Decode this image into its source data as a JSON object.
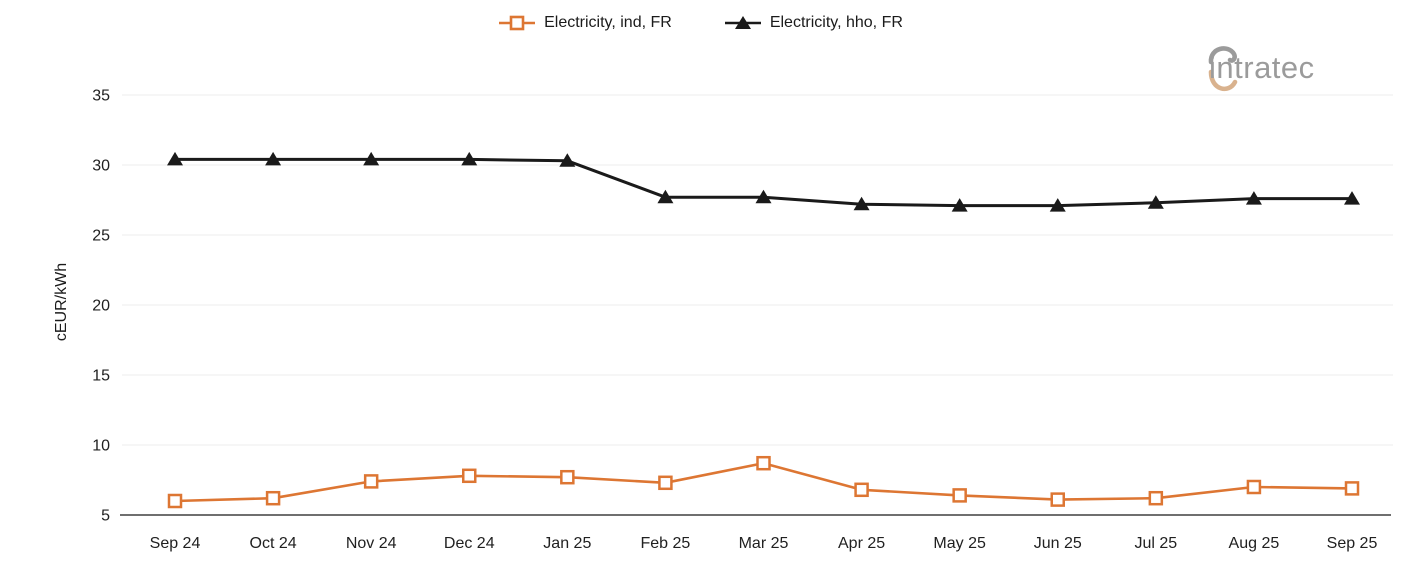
{
  "logo": {
    "text": "intratec"
  },
  "colors": {
    "series_ind_orange": "#DD7633",
    "series_hho_black": "#1A1A1A",
    "grid": "#EDEDED",
    "axis_line": "#6F6F6F",
    "tick_text": "#212121",
    "logo_gray": "#9B9B9B",
    "logo_tan": "#D9B28E"
  },
  "chart_data": {
    "type": "line",
    "title": "",
    "xlabel": "",
    "ylabel": "cEUR/kWh",
    "categories": [
      "Sep 24",
      "Oct 24",
      "Nov 24",
      "Dec 24",
      "Jan 25",
      "Feb 25",
      "Mar 25",
      "Apr 25",
      "May 25",
      "Jun 25",
      "Jul 25",
      "Aug 25",
      "Sep 25"
    ],
    "ylim": [
      5,
      35
    ],
    "yticks": [
      5,
      10,
      15,
      20,
      25,
      30,
      35
    ],
    "grid": "horizontal",
    "legend_position": "top-center",
    "series": [
      {
        "name": "Electricity, ind, FR",
        "color": "#DD7633",
        "marker": "square-hollow",
        "values": [
          6.0,
          6.2,
          7.4,
          7.8,
          7.7,
          7.3,
          8.7,
          6.8,
          6.4,
          6.1,
          6.2,
          7.0,
          6.9
        ]
      },
      {
        "name": "Electricity, hho, FR",
        "color": "#1A1A1A",
        "marker": "triangle-filled",
        "values": [
          30.4,
          30.4,
          30.4,
          30.4,
          30.3,
          27.7,
          27.7,
          27.2,
          27.1,
          27.1,
          27.3,
          27.6,
          27.6
        ]
      }
    ]
  }
}
